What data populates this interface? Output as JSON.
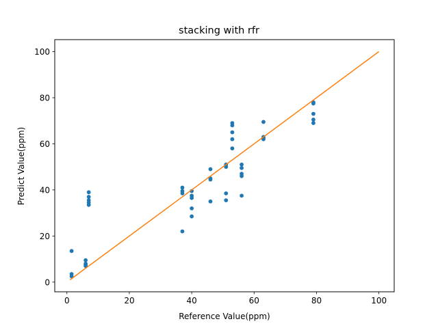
{
  "chart_data": {
    "type": "scatter",
    "title": "stacking with rfr",
    "xlabel": "Reference Value(ppm)",
    "ylabel": "Predict Value(ppm)",
    "xlim": [
      -3.9,
      104.9
    ],
    "ylim": [
      -4.2,
      105.2
    ],
    "xticks": [
      0,
      20,
      40,
      60,
      80,
      100
    ],
    "yticks": [
      0,
      20,
      40,
      60,
      80,
      100
    ],
    "grid": false,
    "legend": "none",
    "series": [
      {
        "type": "scatter",
        "color": "#1f77b4",
        "points": [
          [
            1.5,
            13.5
          ],
          [
            1.5,
            3.5
          ],
          [
            1.5,
            2.5
          ],
          [
            6,
            9.5
          ],
          [
            6,
            8
          ],
          [
            6,
            7.5
          ],
          [
            6,
            7
          ],
          [
            7,
            39
          ],
          [
            7,
            37
          ],
          [
            7,
            35.5
          ],
          [
            7,
            34.5
          ],
          [
            7,
            33.5
          ],
          [
            37,
            41
          ],
          [
            37,
            39.5
          ],
          [
            37,
            38.5
          ],
          [
            37,
            22
          ],
          [
            40,
            39.5
          ],
          [
            40,
            37.5
          ],
          [
            40,
            36.5
          ],
          [
            40,
            32
          ],
          [
            40,
            28.5
          ],
          [
            46,
            49
          ],
          [
            46,
            45
          ],
          [
            46,
            44.5
          ],
          [
            46,
            35
          ],
          [
            51,
            51
          ],
          [
            51,
            50
          ],
          [
            51,
            38.5
          ],
          [
            51,
            35.5
          ],
          [
            53,
            69
          ],
          [
            53,
            68
          ],
          [
            53,
            65
          ],
          [
            53,
            62
          ],
          [
            53,
            58
          ],
          [
            56,
            51
          ],
          [
            56,
            49.5
          ],
          [
            56,
            47
          ],
          [
            56,
            46
          ],
          [
            56,
            37.5
          ],
          [
            63,
            69.5
          ],
          [
            63,
            63
          ],
          [
            63,
            62.5
          ],
          [
            63,
            62
          ],
          [
            79,
            78
          ],
          [
            79,
            77.5
          ],
          [
            79,
            73
          ],
          [
            79,
            70.5
          ],
          [
            79,
            69
          ]
        ]
      },
      {
        "type": "line",
        "color": "#ff7f0e",
        "points": [
          [
            1,
            1
          ],
          [
            100,
            100
          ]
        ]
      }
    ]
  }
}
